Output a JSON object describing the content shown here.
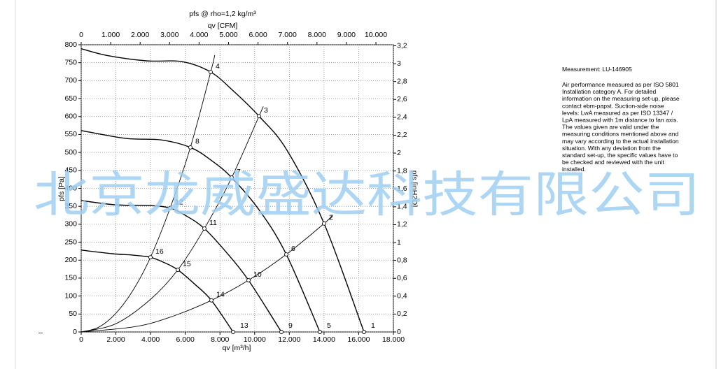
{
  "chart_data": {
    "type": "fan-curve",
    "title": "pfs @ rho=1,2 kg/m³",
    "x_label": "qv [m³/h]",
    "x2_label": "qv [CFM]",
    "y_label": "pfs [Pa]",
    "y2_label": "pfs [inH2O]",
    "xlim": [
      0,
      18000
    ],
    "xticks": [
      0,
      {
        "value": 2000,
        "label": "2.000"
      },
      {
        "value": 4000,
        "label": "4.000"
      },
      {
        "value": 6000,
        "label": "6.000"
      },
      {
        "value": 8000,
        "label": "8.000"
      },
      {
        "value": 10000,
        "label": "10.000"
      },
      {
        "value": 12000,
        "label": "12.000"
      },
      {
        "value": 14000,
        "label": "14.000"
      },
      {
        "value": 16000,
        "label": "16.000"
      },
      {
        "value": 18000,
        "label": "18.000"
      }
    ],
    "x2lim": [
      0,
      10594
    ],
    "x2ticks": [
      0,
      {
        "value": 1000,
        "label": "1.000"
      },
      {
        "value": 2000,
        "label": "2.000"
      },
      {
        "value": 3000,
        "label": "3.000"
      },
      {
        "value": 4000,
        "label": "4.000"
      },
      {
        "value": 5000,
        "label": "5.000"
      },
      {
        "value": 6000,
        "label": "6.000"
      },
      {
        "value": 7000,
        "label": "7.000"
      },
      {
        "value": 8000,
        "label": "8.000"
      },
      {
        "value": 9000,
        "label": "9.000"
      },
      {
        "value": 10000,
        "label": "10.000"
      }
    ],
    "ylim": [
      0,
      800
    ],
    "yticks": [
      0,
      50,
      100,
      150,
      200,
      250,
      300,
      350,
      400,
      450,
      500,
      550,
      600,
      650,
      700,
      750,
      800
    ],
    "y2lim": [
      0,
      3.2117
    ],
    "y2ticks": [
      0,
      {
        "value": 0.2,
        "label": "0,2"
      },
      {
        "value": 0.4,
        "label": "0,4"
      },
      {
        "value": 0.6,
        "label": "0,6"
      },
      {
        "value": 0.8,
        "label": "0,8"
      },
      1,
      {
        "value": 1.2,
        "label": "1,2"
      },
      {
        "value": 1.4,
        "label": "1,4"
      },
      {
        "value": 1.6,
        "label": "1,6"
      },
      {
        "value": 1.8,
        "label": "1,8"
      },
      2,
      {
        "value": 2.2,
        "label": "2,2"
      },
      {
        "value": 2.4,
        "label": "2,4"
      },
      {
        "value": 2.6,
        "label": "2,6"
      },
      {
        "value": 2.8,
        "label": "2,8"
      },
      3,
      {
        "value": 3.2,
        "label": "3,2"
      }
    ],
    "grid": true,
    "fan_curves": [
      {
        "color": "#000000",
        "x": [
          0,
          1500,
          3794,
          5812,
          7466,
          8800,
          10251,
          11865,
          14004,
          16305
        ],
        "values": [
          789,
          770,
          755,
          753,
          724,
          670,
          601,
          506,
          302,
          0
        ]
      },
      {
        "color": "#000000",
        "x": [
          0,
          2583,
          4600,
          6296,
          7500,
          8677,
          10300,
          11825,
          13762
        ],
        "values": [
          561,
          539,
          535,
          514,
          478,
          430,
          337,
          216,
          0
        ]
      },
      {
        "color": "#000000",
        "x": [
          0,
          2000,
          3995,
          5126,
          6100,
          7103,
          8400,
          9646,
          11543
        ],
        "values": [
          366,
          354,
          352,
          345,
          322,
          288,
          220,
          144,
          0
        ]
      },
      {
        "color": "#000000",
        "x": [
          0,
          1776,
          2987,
          3995,
          4800,
          5570,
          6550,
          7507,
          8758
        ],
        "values": [
          228,
          218,
          214,
          208,
          193,
          173,
          133,
          88,
          0
        ]
      }
    ],
    "system_curves": [
      {
        "color": "#000000",
        "x": [
          0,
          1000,
          2000,
          3000,
          3995,
          5126,
          6296,
          7466,
          7700
        ],
        "values": [
          0,
          13,
          52,
          117,
          208,
          345,
          514,
          724,
          771
        ]
      },
      {
        "color": "#000000",
        "x": [
          0,
          2000,
          4000,
          5570,
          7103,
          8677,
          10251,
          10500
        ],
        "values": [
          0,
          23,
          91,
          173,
          288,
          430,
          601,
          628
        ]
      },
      {
        "color": "#000000",
        "x": [
          0,
          3000,
          5000,
          7507,
          9646,
          11825,
          14004,
          14500
        ],
        "values": [
          0,
          14,
          39,
          88,
          144,
          216,
          302,
          326
        ]
      }
    ],
    "operating_points": [
      {
        "label": "1",
        "x": 16305,
        "y": 0
      },
      {
        "label": "2",
        "x": 14004,
        "y": 302
      },
      {
        "label": "3",
        "x": 10251,
        "y": 601
      },
      {
        "label": "4",
        "x": 7466,
        "y": 724
      },
      {
        "label": "5",
        "x": 13762,
        "y": 0
      },
      {
        "label": "6",
        "x": 11825,
        "y": 216
      },
      {
        "label": "7",
        "x": 8677,
        "y": 430
      },
      {
        "label": "8",
        "x": 6296,
        "y": 514
      },
      {
        "label": "9",
        "x": 11543,
        "y": 0
      },
      {
        "label": "10",
        "x": 9646,
        "y": 144
      },
      {
        "label": "11",
        "x": 7103,
        "y": 288
      },
      {
        "label": "12",
        "x": 5126,
        "y": 345
      },
      {
        "label": "13",
        "x": 8758,
        "y": 0
      },
      {
        "label": "14",
        "x": 7507,
        "y": 88
      },
      {
        "label": "15",
        "x": 5570,
        "y": 173
      },
      {
        "label": "16",
        "x": 3995,
        "y": 208
      }
    ]
  },
  "notes": {
    "measurement": "Measurement: LU-146905",
    "lines": [
      "Air performance measured as per ISO 5801",
      "Installation category A. For detailed",
      "information on the measuring set-up, please",
      "contact ebm-papst. Suction-side noise",
      "levels: LwA measured as per ISO 13347 /",
      "LpA measured with 1m distance to fan axis.",
      "The values given are valid under the",
      "measuring conditions mentioned above and",
      "may vary according to the actual installation",
      "situation. With any deviation from the",
      "standard set-up, the specific values have to",
      "be checked and reviewed with the unit",
      "installed."
    ]
  },
  "watermark": "北京龙威盛达科技有限公司",
  "margin_mark": "–"
}
